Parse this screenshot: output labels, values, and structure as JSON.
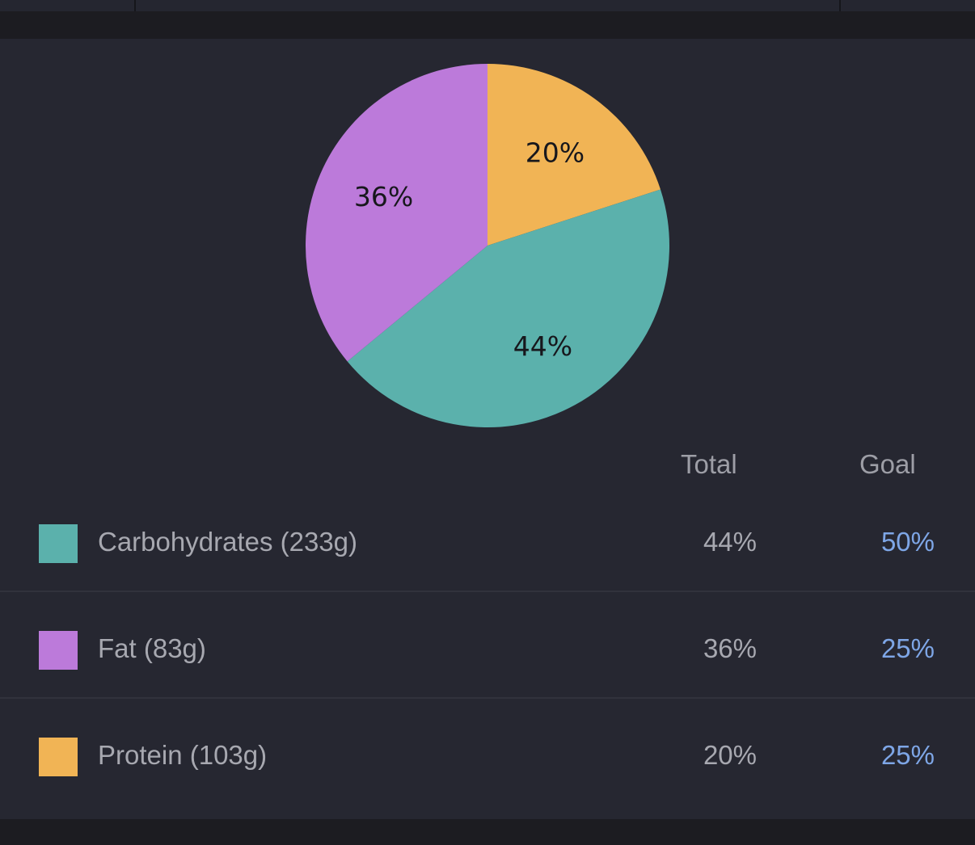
{
  "chart_data": {
    "type": "pie",
    "slices": [
      {
        "label": "20%",
        "value": 20,
        "color": "#f1b455"
      },
      {
        "label": "44%",
        "value": 44,
        "color": "#5bb1ac"
      },
      {
        "label": "36%",
        "value": 36,
        "color": "#bc7ada"
      }
    ],
    "start_angle_deg": 0,
    "direction": "clockwise"
  },
  "table": {
    "headers": {
      "total": "Total",
      "goal": "Goal"
    },
    "rows": [
      {
        "label": "Carbohydrates (233g)",
        "total": "44%",
        "goal": "50%",
        "color": "#5bb1ac"
      },
      {
        "label": "Fat (83g)",
        "total": "36%",
        "goal": "25%",
        "color": "#bc7ada"
      },
      {
        "label": "Protein (103g)",
        "total": "20%",
        "goal": "25%",
        "color": "#f1b455"
      }
    ]
  },
  "colors": {
    "goal_text": "#7ea6e6",
    "panel_bg": "#262731"
  }
}
